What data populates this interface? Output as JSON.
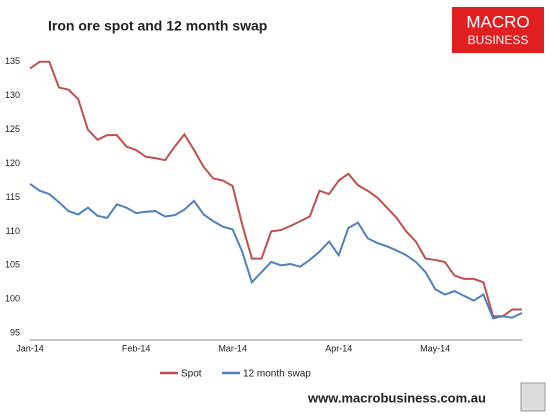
{
  "chart_data": {
    "type": "line",
    "title": "Iron ore spot and 12 month swap",
    "categories": [
      "Jan-14",
      null,
      null,
      null,
      null,
      null,
      null,
      null,
      null,
      null,
      null,
      "Feb-14",
      null,
      null,
      null,
      null,
      null,
      null,
      null,
      null,
      null,
      "Mar-14",
      null,
      null,
      null,
      null,
      null,
      null,
      null,
      null,
      null,
      null,
      "Apr-14",
      null,
      null,
      null,
      null,
      null,
      null,
      null,
      null,
      null,
      "May-14",
      null,
      null,
      null,
      null,
      null,
      null,
      null,
      null,
      null
    ],
    "series": [
      {
        "name": "Spot",
        "color": "#c0504d",
        "values": [
          134,
          135,
          135,
          131.2,
          130.9,
          129.5,
          125,
          123.5,
          124.2,
          124.2,
          122.5,
          122,
          121,
          120.8,
          120.5,
          122.5,
          124.3,
          122,
          119.5,
          117.8,
          117.5,
          116.7,
          111,
          106,
          106,
          110,
          110.2,
          110.8,
          111.5,
          112.2,
          116,
          115.5,
          117.5,
          118.5,
          116.8,
          116,
          115,
          113.5,
          112,
          110,
          108.5,
          106,
          105.8,
          105.5,
          103.5,
          103,
          103,
          102.5,
          97.5,
          97.5,
          98.5,
          98.5
        ]
      },
      {
        "name": "12 month swap",
        "color": "#4f81bd",
        "values": [
          117,
          116,
          115.5,
          114.3,
          113,
          112.5,
          113.5,
          112.3,
          112,
          114,
          113.5,
          112.7,
          112.9,
          113,
          112.2,
          112.4,
          113.2,
          114.5,
          112.5,
          111.5,
          110.7,
          110.3,
          107,
          102.5,
          104,
          105.5,
          105,
          105.2,
          104.8,
          105.8,
          107,
          108.5,
          106.5,
          110.5,
          111.3,
          109,
          108.3,
          107.8,
          107.2,
          106.5,
          105.5,
          104,
          101.5,
          100.7,
          101.2,
          100.5,
          99.8,
          100.7,
          97.2,
          97.5,
          97.3,
          98
        ]
      }
    ],
    "ylim": [
      94,
      136
    ],
    "yticks": [
      95,
      100,
      105,
      110,
      115,
      120,
      125,
      130,
      135
    ],
    "legend": "bottom"
  },
  "logo": [
    "MACRO",
    "BUSINESS"
  ],
  "footer": "www.macrobusiness.com.au"
}
